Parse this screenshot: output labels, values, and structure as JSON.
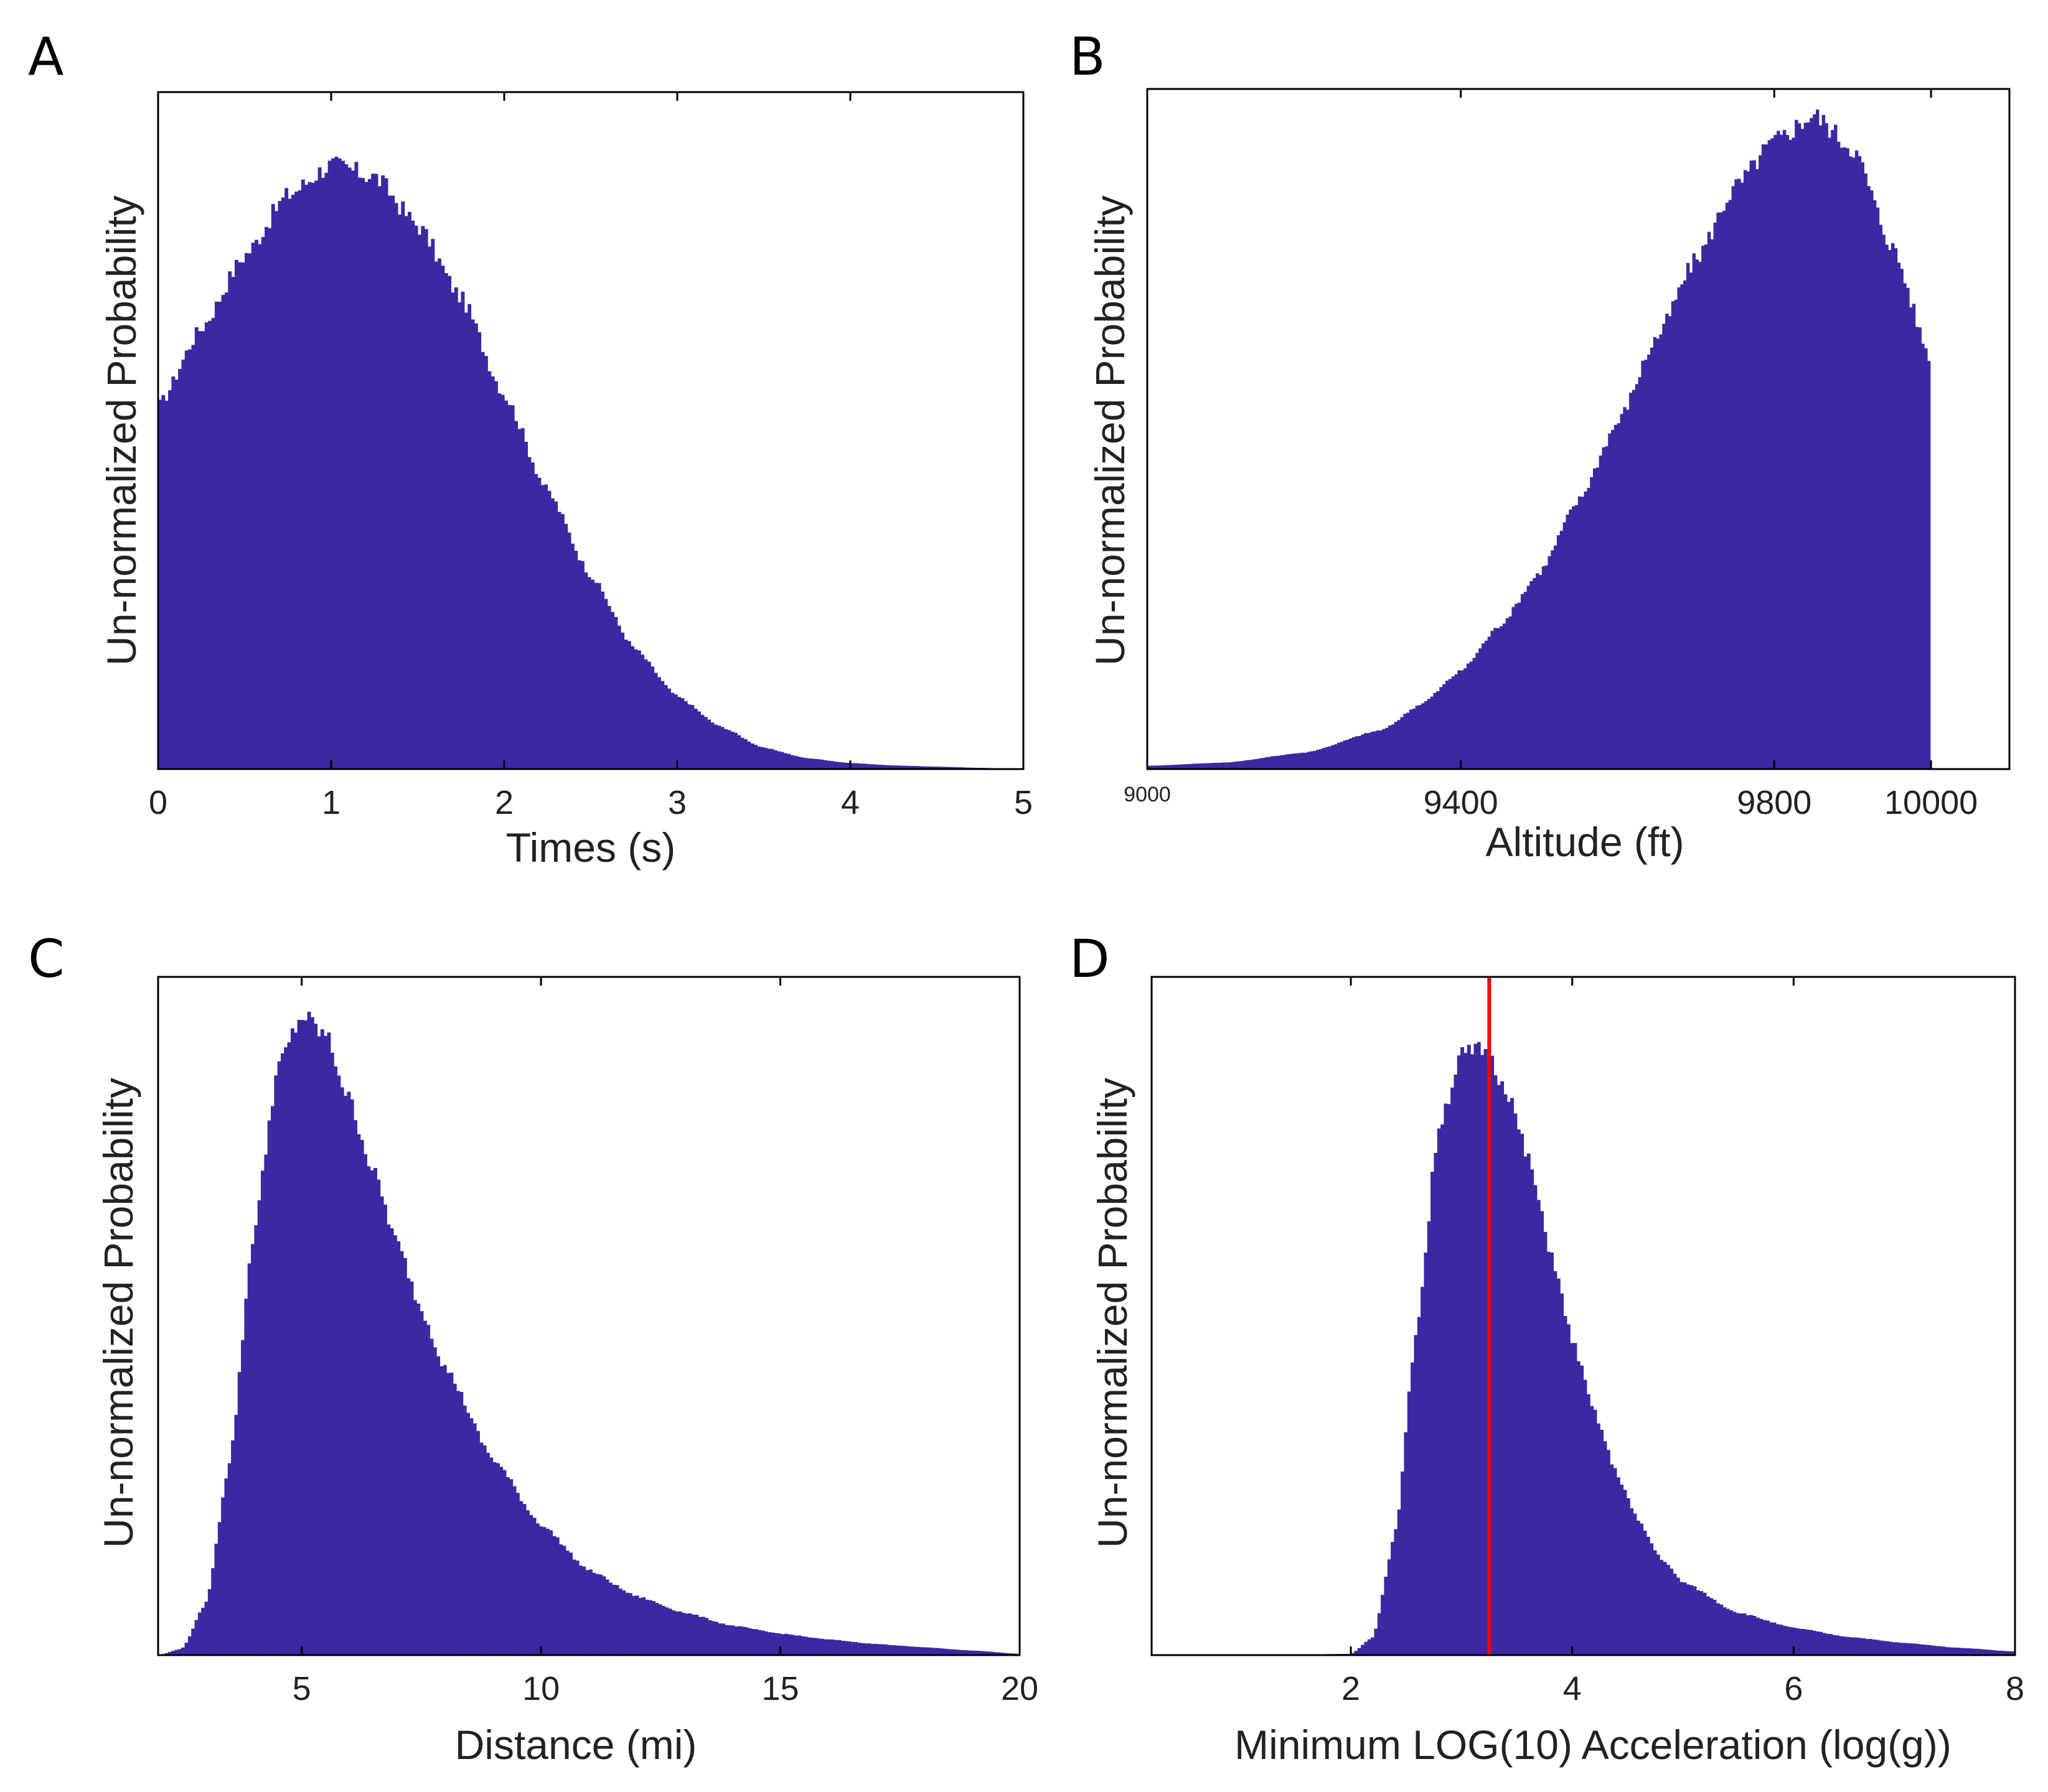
{
  "chart_data": [
    {
      "type": "bar",
      "panel": "A",
      "title": "",
      "xlabel": "Times (s)",
      "ylabel": "Un-normalized Probability",
      "xlim": [
        0,
        5
      ],
      "xticks": [
        0,
        1,
        2,
        3,
        4,
        5
      ],
      "xtick_labels": [
        "0",
        "1",
        "2",
        "3",
        "4",
        "5"
      ],
      "ylim": [
        0,
        1.12
      ],
      "distribution": "weibull-like, skewed right",
      "x": [
        0,
        0.25,
        0.5,
        0.75,
        1.0,
        1.25,
        1.5,
        1.75,
        2.0,
        2.25,
        2.5,
        2.75,
        3.0,
        3.25,
        3.5,
        3.75,
        4.0,
        4.25,
        4.5,
        4.75,
        5.0
      ],
      "values": [
        0.6,
        0.73,
        0.85,
        0.95,
        1.0,
        0.98,
        0.9,
        0.78,
        0.62,
        0.46,
        0.32,
        0.2,
        0.12,
        0.07,
        0.035,
        0.018,
        0.01,
        0.006,
        0.004,
        0.002,
        0.0
      ]
    },
    {
      "type": "bar",
      "panel": "B",
      "title": "",
      "xlabel": "Altitude (ft)",
      "ylabel": "Un-normalized Probability",
      "xlim": [
        9000,
        10100
      ],
      "xticks": [
        9000,
        9400,
        9800,
        10000
      ],
      "xtick_labels": [
        "9000",
        "9400",
        "9800",
        "10000"
      ],
      "ylim": [
        0,
        1.04
      ],
      "distribution": "left-skewed, truncated at 10000 ft",
      "x": [
        9000,
        9100,
        9200,
        9300,
        9350,
        9400,
        9450,
        9500,
        9550,
        9600,
        9650,
        9700,
        9750,
        9800,
        9850,
        9900,
        9950,
        9999
      ],
      "values": [
        0.005,
        0.01,
        0.025,
        0.06,
        0.1,
        0.15,
        0.22,
        0.3,
        0.41,
        0.53,
        0.66,
        0.78,
        0.89,
        0.96,
        1.0,
        0.95,
        0.8,
        0.63
      ]
    },
    {
      "type": "bar",
      "panel": "C",
      "title": "",
      "xlabel": "Distance (mi)",
      "ylabel": "Un-normalized Probability",
      "xlim": [
        2,
        20
      ],
      "xticks": [
        5,
        10,
        15,
        20
      ],
      "xtick_labels": [
        "5",
        "10",
        "15",
        "20"
      ],
      "ylim": [
        0,
        1.04
      ],
      "distribution": "log-normal-like, right-skewed",
      "x": [
        2,
        2.5,
        3,
        3.5,
        4,
        4.5,
        5,
        5.5,
        6,
        6.5,
        7,
        7.5,
        8,
        9,
        10,
        11,
        12,
        13,
        14,
        15,
        16,
        17,
        18,
        19,
        20
      ],
      "values": [
        0.0,
        0.01,
        0.08,
        0.3,
        0.65,
        0.9,
        0.98,
        0.95,
        0.85,
        0.74,
        0.63,
        0.53,
        0.44,
        0.3,
        0.2,
        0.13,
        0.09,
        0.065,
        0.045,
        0.033,
        0.024,
        0.017,
        0.012,
        0.007,
        0.002
      ]
    },
    {
      "type": "bar",
      "panel": "D",
      "title": "",
      "xlabel": "Minimum LOG(10) Acceleration (log(g))",
      "ylabel": "Un-normalized Probability",
      "xlim": [
        0.2,
        8
      ],
      "xticks": [
        2,
        4,
        6,
        8
      ],
      "xtick_labels": [
        "2",
        "4",
        "6",
        "8"
      ],
      "ylim": [
        0,
        1.12
      ],
      "reference_line": {
        "x": 3.25,
        "color": "#ff0000"
      },
      "distribution": "right-skewed peak near 3.3",
      "x": [
        0.2,
        1,
        2,
        2.2,
        2.4,
        2.6,
        2.8,
        3.0,
        3.2,
        3.4,
        3.6,
        3.8,
        4.0,
        4.2,
        4.4,
        4.6,
        4.8,
        5.0,
        5.5,
        6.0,
        6.5,
        7.0,
        7.5,
        8.0
      ],
      "values": [
        0.0,
        0.0,
        0.002,
        0.03,
        0.2,
        0.55,
        0.88,
        0.99,
        1.0,
        0.94,
        0.82,
        0.67,
        0.52,
        0.4,
        0.3,
        0.22,
        0.16,
        0.12,
        0.07,
        0.045,
        0.03,
        0.02,
        0.012,
        0.006
      ]
    }
  ],
  "colors": {
    "bar": "#3b28a3",
    "line": "#ff0000",
    "axis": "#000000",
    "text": "#222222"
  }
}
